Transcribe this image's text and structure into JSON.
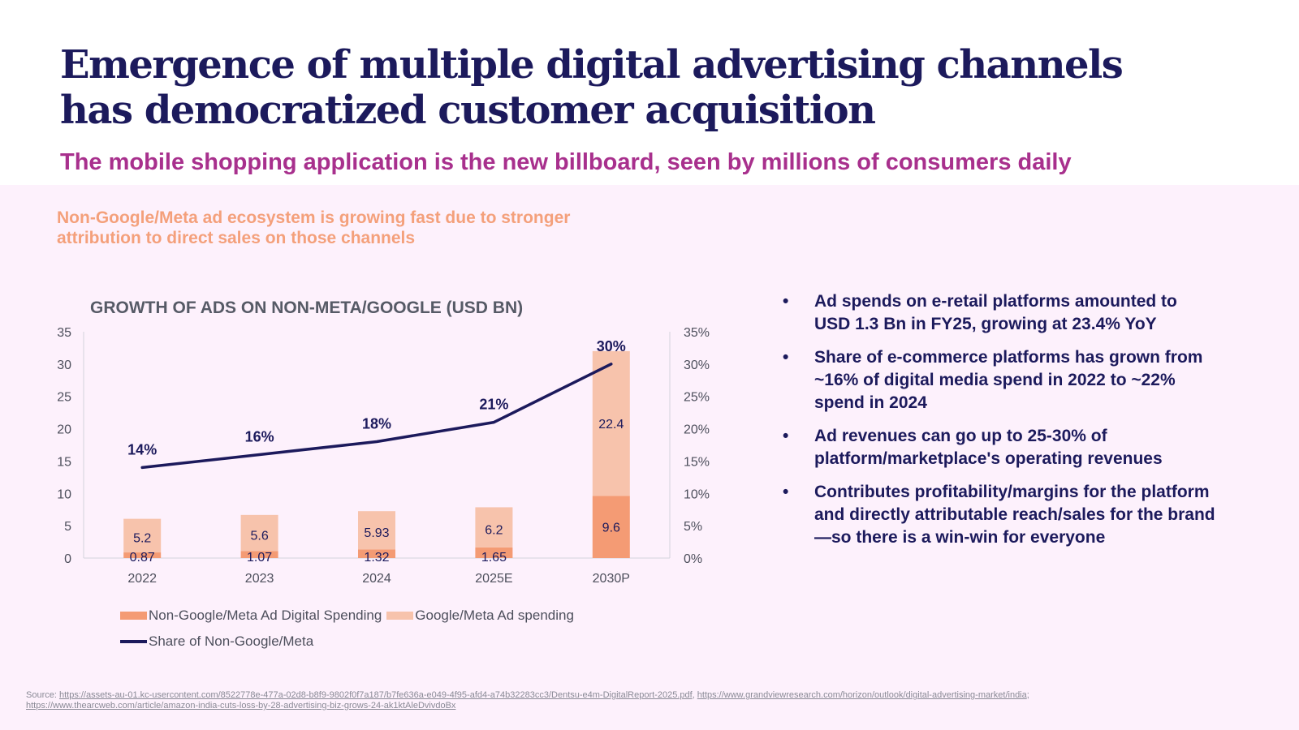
{
  "header": {
    "title_line1": "Emergence of multiple digital advertising channels",
    "title_line2": "has democratized customer acquisition",
    "subtitle": "The mobile shopping application is the new billboard, seen by millions of consumers daily"
  },
  "callout": "Non-Google/Meta ad ecosystem is growing fast due to stronger attribution to direct sales on those channels",
  "colors": {
    "title": "#1c1a5c",
    "subtitle": "#a8308d",
    "callout": "#f4a07b",
    "panel_bg": "#fdf1fc",
    "non_google_meta": "#f49b74",
    "google_meta": "#f7c3ac",
    "share_line": "#1c1a5c"
  },
  "chart_data": {
    "type": "bar",
    "stacked": true,
    "title": "GROWTH OF ADS ON NON-META/GOOGLE (USD BN)",
    "categories": [
      "2022",
      "2023",
      "2024",
      "2025E",
      "2030P"
    ],
    "series": [
      {
        "name": "Non-Google/Meta Ad Digital Spending",
        "type": "bar",
        "axis": "left",
        "values": [
          0.87,
          1.07,
          1.32,
          1.65,
          9.6
        ],
        "labels": [
          "0.87",
          "1.07",
          "1.32",
          "1.65",
          "9.6"
        ]
      },
      {
        "name": "Google/Meta Ad spending",
        "type": "bar",
        "axis": "left",
        "values": [
          5.2,
          5.6,
          5.93,
          6.2,
          22.4
        ],
        "labels": [
          "5.2",
          "5.6",
          "5.93",
          "6.2",
          "22.4"
        ]
      },
      {
        "name": "Share of Non-Google/Meta",
        "type": "line",
        "axis": "right",
        "values": [
          14,
          16,
          18,
          21,
          30
        ],
        "labels": [
          "14%",
          "16%",
          "18%",
          "21%",
          "30%"
        ]
      }
    ],
    "ylim_left": [
      0,
      35
    ],
    "yticks_left": [
      "0",
      "5",
      "10",
      "15",
      "20",
      "25",
      "30",
      "35"
    ],
    "ylim_right": [
      0,
      35
    ],
    "yticks_right": [
      "0%",
      "5%",
      "10%",
      "15%",
      "20%",
      "25%",
      "30%",
      "35%"
    ],
    "grid": false,
    "legend": "bottom-left"
  },
  "bullets": [
    "Ad spends on e-retail platforms amounted to USD 1.3 Bn in FY25, growing at 23.4% YoY",
    "Share of e-commerce platforms has grown from ~16% of digital media spend in 2022 to ~22% spend in 2024",
    "Ad revenues can go up to 25-30% of platform/marketplace's operating revenues",
    "Contributes profitability/margins for the platform and directly attributable reach/sales for the brand—so there is a win-win for everyone"
  ],
  "bullet_glyph": "•",
  "source": {
    "label": "Source: ",
    "links": [
      "https://assets-au-01.kc-usercontent.com/8522778e-477a-02d8-b8f9-9802f0f7a187/b7fe636a-e049-4f95-afd4-a74b32283cc3/Dentsu-e4m-DigitalReport-2025.pdf",
      "https://www.grandviewresearch.com/horizon/outlook/digital-advertising-market/india",
      "https://www.thearcweb.com/article/amazon-india-cuts-loss-by-28-advertising-biz-grows-24-ak1ktAleDvivdoBx"
    ],
    "sep1": ", ",
    "sep2": ";"
  }
}
